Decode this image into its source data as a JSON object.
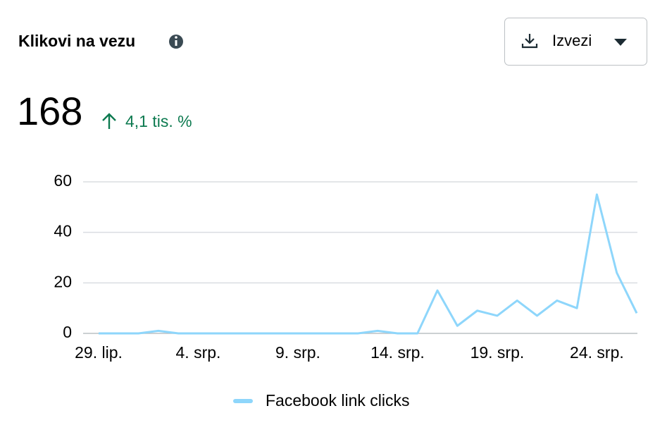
{
  "header": {
    "title": "Klikovi na vezu",
    "button": "Izvezi"
  },
  "summary": {
    "total": "168",
    "change": "4,1 tis. %"
  },
  "chart_data": {
    "type": "line",
    "categories": [
      "29. lip.",
      null,
      null,
      null,
      null,
      "4. srp.",
      null,
      null,
      null,
      null,
      "9. srp.",
      null,
      null,
      null,
      null,
      "14. srp.",
      null,
      null,
      null,
      null,
      "19. srp.",
      null,
      null,
      null,
      null,
      "24. srp.",
      null,
      null
    ],
    "series": [
      {
        "name": "Facebook link clicks",
        "color": "#8ed6fb",
        "values": [
          0,
          0,
          0,
          1,
          0,
          0,
          0,
          0,
          0,
          0,
          0,
          0,
          0,
          0,
          1,
          0,
          0,
          17,
          3,
          9,
          7,
          13,
          7,
          13,
          10,
          55,
          24,
          8
        ]
      }
    ],
    "ylim": [
      0,
      60
    ],
    "yticks": [
      0,
      20,
      40,
      60
    ],
    "grid": true,
    "legend": "bottom"
  }
}
